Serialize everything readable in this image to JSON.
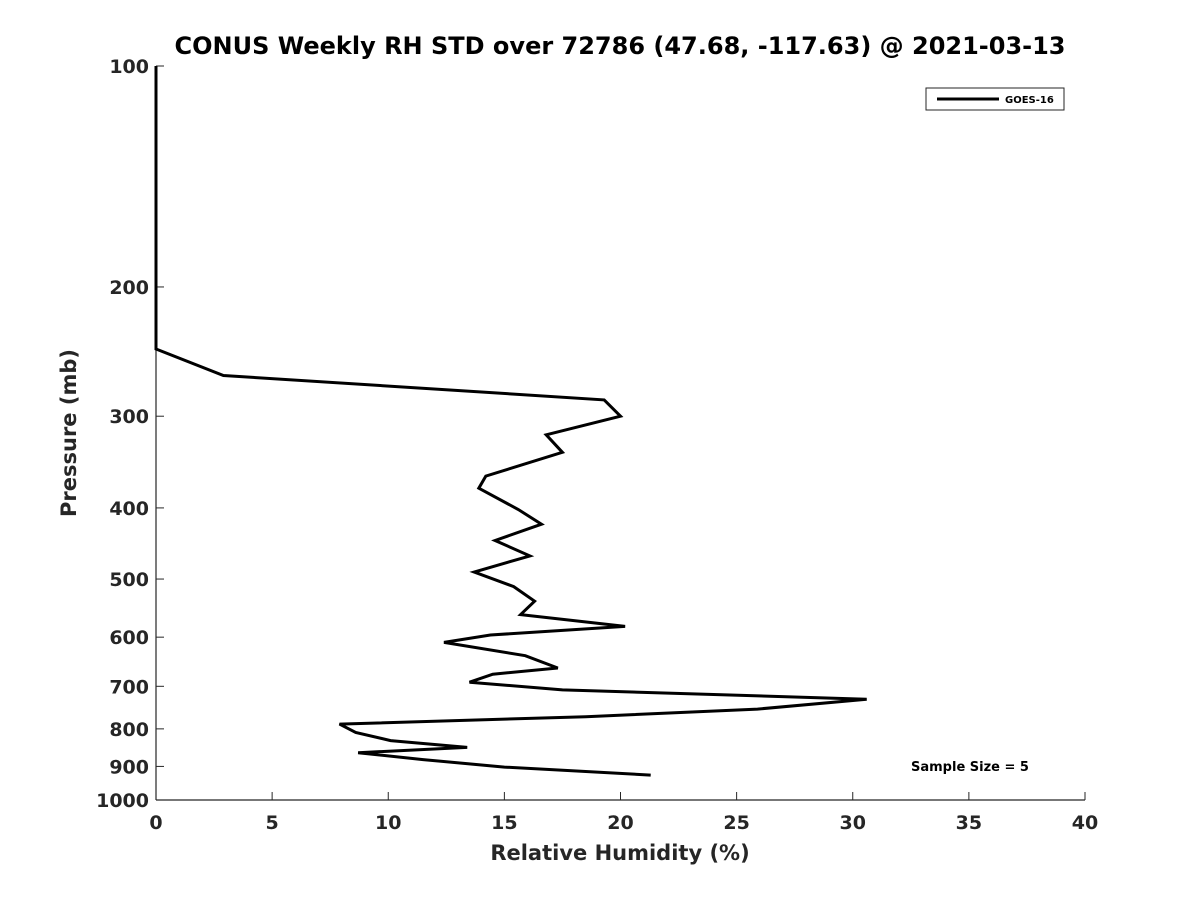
{
  "chart_data": {
    "type": "line",
    "title": "CONUS Weekly RH STD over 72786 (47.68, -117.63) @ 2021-03-13",
    "xlabel": "Relative Humidity (%)",
    "ylabel": "Pressure (mb)",
    "xlim": [
      0,
      40
    ],
    "ylim": [
      100,
      1000
    ],
    "y_scale": "log",
    "y_reversed": true,
    "xticks": [
      0,
      5,
      10,
      15,
      20,
      25,
      30,
      35,
      40
    ],
    "yticks": [
      100,
      200,
      300,
      400,
      500,
      600,
      700,
      800,
      900,
      1000
    ],
    "grid": false,
    "legend_position": "top-right",
    "annotation": "Sample Size = 5",
    "colors": {
      "line": "#000000",
      "axis": "#262626"
    },
    "series": [
      {
        "name": "GOES-16",
        "points": [
          {
            "x": 0.0,
            "y": 100
          },
          {
            "x": 0.0,
            "y": 200
          },
          {
            "x": 0.0,
            "y": 243
          },
          {
            "x": 2.9,
            "y": 264
          },
          {
            "x": 19.3,
            "y": 285
          },
          {
            "x": 20.0,
            "y": 300
          },
          {
            "x": 16.8,
            "y": 318
          },
          {
            "x": 17.5,
            "y": 336
          },
          {
            "x": 14.2,
            "y": 362
          },
          {
            "x": 13.9,
            "y": 376
          },
          {
            "x": 15.6,
            "y": 402
          },
          {
            "x": 16.6,
            "y": 421
          },
          {
            "x": 14.6,
            "y": 443
          },
          {
            "x": 16.1,
            "y": 465
          },
          {
            "x": 13.7,
            "y": 489
          },
          {
            "x": 15.4,
            "y": 512
          },
          {
            "x": 16.3,
            "y": 536
          },
          {
            "x": 15.7,
            "y": 559
          },
          {
            "x": 20.2,
            "y": 580
          },
          {
            "x": 14.4,
            "y": 596
          },
          {
            "x": 12.4,
            "y": 610
          },
          {
            "x": 15.9,
            "y": 636
          },
          {
            "x": 17.3,
            "y": 661
          },
          {
            "x": 14.5,
            "y": 674
          },
          {
            "x": 13.5,
            "y": 691
          },
          {
            "x": 17.5,
            "y": 708
          },
          {
            "x": 30.6,
            "y": 729
          },
          {
            "x": 25.9,
            "y": 752
          },
          {
            "x": 18.5,
            "y": 770
          },
          {
            "x": 7.9,
            "y": 788
          },
          {
            "x": 8.6,
            "y": 809
          },
          {
            "x": 10.1,
            "y": 830
          },
          {
            "x": 13.4,
            "y": 848
          },
          {
            "x": 8.7,
            "y": 862
          },
          {
            "x": 11.5,
            "y": 881
          },
          {
            "x": 15.0,
            "y": 902
          },
          {
            "x": 21.3,
            "y": 925
          }
        ]
      }
    ]
  }
}
